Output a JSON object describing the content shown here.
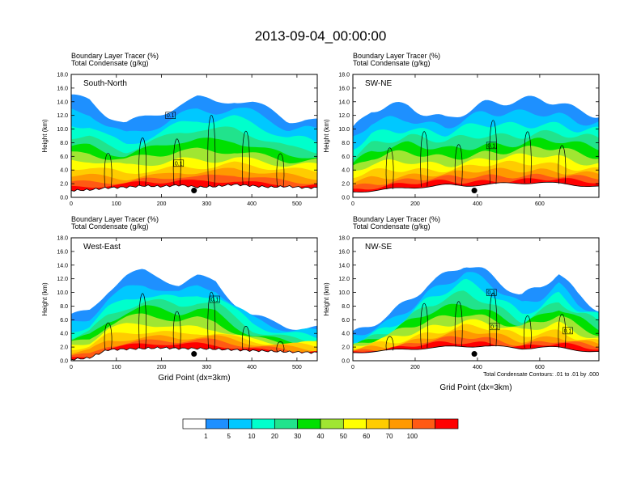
{
  "title": "2013-09-04_00:00:00",
  "subtitle_lines": [
    "Boundary Layer Tracer   (%)",
    "Total Condensate   (g/kg)"
  ],
  "ylabel": "Height (km)",
  "xlabel": "Grid Point (dx=3km)",
  "contour_note": "Total Condensate Contours: .01 to .01 by .000",
  "colors": {
    "fill_levels": [
      "#ffffff",
      "#1e90ff",
      "#00c8ff",
      "#00ffcc",
      "#21e38c",
      "#00e000",
      "#a0e632",
      "#ffff00",
      "#ffcc00",
      "#ff9900",
      "#ff5a14",
      "#ff0000"
    ],
    "contour": "#000000"
  },
  "chart_data": [
    {
      "type": "heatmap",
      "panel": "South-North",
      "xlim": [
        0,
        545
      ],
      "ylim": [
        0,
        18
      ],
      "x_ticks": [
        "0",
        "100",
        "200",
        "300",
        "400",
        "500"
      ],
      "y_ticks": [
        "0.0",
        "2.0",
        "4.0",
        "6.0",
        "8.0",
        "10.0",
        "12.0",
        "14.0",
        "16.0",
        "18.0"
      ],
      "marker_x": 272,
      "box_labels": [
        {
          "x": 220,
          "y": 12.0,
          "text": "0.1"
        },
        {
          "x": 238,
          "y": 5.0,
          "text": "0.1"
        }
      ],
      "profile": [
        {
          "x": 0,
          "terrain": 1.0,
          "top": 14.2
        },
        {
          "x": 40,
          "terrain": 1.1,
          "top": 14.0
        },
        {
          "x": 80,
          "terrain": 1.4,
          "top": 11.8
        },
        {
          "x": 120,
          "terrain": 1.5,
          "top": 10.5
        },
        {
          "x": 160,
          "terrain": 1.7,
          "top": 11.5
        },
        {
          "x": 200,
          "terrain": 1.6,
          "top": 12.6
        },
        {
          "x": 240,
          "terrain": 1.8,
          "top": 14.0
        },
        {
          "x": 280,
          "terrain": 1.5,
          "top": 14.8
        },
        {
          "x": 320,
          "terrain": 1.6,
          "top": 14.4
        },
        {
          "x": 360,
          "terrain": 1.9,
          "top": 14.6
        },
        {
          "x": 400,
          "terrain": 1.7,
          "top": 13.8
        },
        {
          "x": 440,
          "terrain": 1.5,
          "top": 12.5
        },
        {
          "x": 480,
          "terrain": 1.6,
          "top": 11.0
        },
        {
          "x": 520,
          "terrain": 1.4,
          "top": 11.2
        },
        {
          "x": 545,
          "terrain": 1.4,
          "top": 10.8
        }
      ]
    },
    {
      "type": "heatmap",
      "panel": "SW-NE",
      "xlim": [
        0,
        790
      ],
      "ylim": [
        0,
        18
      ],
      "x_ticks": [
        "0",
        "200",
        "400",
        "600"
      ],
      "y_ticks": [
        "0.0",
        "2.0",
        "4.0",
        "6.0",
        "8.0",
        "10.0",
        "12.0",
        "14.0",
        "16.0",
        "18.0"
      ],
      "marker_x": 390,
      "box_labels": [
        {
          "x": 445,
          "y": 7.6,
          "text": "0.1"
        }
      ],
      "profile": [
        {
          "x": 0,
          "terrain": 0.8,
          "top": 9.5
        },
        {
          "x": 60,
          "terrain": 1.0,
          "top": 12.5
        },
        {
          "x": 120,
          "terrain": 1.2,
          "top": 13.2
        },
        {
          "x": 180,
          "terrain": 1.4,
          "top": 13.5
        },
        {
          "x": 240,
          "terrain": 1.6,
          "top": 12.5
        },
        {
          "x": 300,
          "terrain": 1.8,
          "top": 11.8
        },
        {
          "x": 360,
          "terrain": 1.7,
          "top": 12.8
        },
        {
          "x": 420,
          "terrain": 1.9,
          "top": 13.6
        },
        {
          "x": 480,
          "terrain": 2.0,
          "top": 13.6
        },
        {
          "x": 540,
          "terrain": 2.1,
          "top": 13.8
        },
        {
          "x": 600,
          "terrain": 2.2,
          "top": 14.2
        },
        {
          "x": 660,
          "terrain": 2.0,
          "top": 14.0
        },
        {
          "x": 720,
          "terrain": 1.8,
          "top": 13.0
        },
        {
          "x": 790,
          "terrain": 1.6,
          "top": 12.5
        }
      ]
    },
    {
      "type": "heatmap",
      "panel": "West-East",
      "xlim": [
        0,
        545
      ],
      "ylim": [
        0,
        18
      ],
      "x_ticks": [
        "0",
        "100",
        "200",
        "300",
        "400",
        "500"
      ],
      "y_ticks": [
        "0.0",
        "2.0",
        "4.0",
        "6.0",
        "8.0",
        "10.0",
        "12.0",
        "14.0",
        "16.0",
        "18.0"
      ],
      "marker_x": 272,
      "box_labels": [
        {
          "x": 318,
          "y": 9.0,
          "text": "0.1"
        }
      ],
      "profile": [
        {
          "x": 0,
          "terrain": 0.2,
          "top": 6.0
        },
        {
          "x": 40,
          "terrain": 0.4,
          "top": 7.0
        },
        {
          "x": 80,
          "terrain": 1.6,
          "top": 10.0
        },
        {
          "x": 120,
          "terrain": 1.7,
          "top": 12.0
        },
        {
          "x": 160,
          "terrain": 1.8,
          "top": 13.0
        },
        {
          "x": 200,
          "terrain": 1.9,
          "top": 12.5
        },
        {
          "x": 240,
          "terrain": 1.8,
          "top": 11.5
        },
        {
          "x": 280,
          "terrain": 1.8,
          "top": 12.5
        },
        {
          "x": 320,
          "terrain": 1.7,
          "top": 12.0
        },
        {
          "x": 360,
          "terrain": 1.6,
          "top": 9.0
        },
        {
          "x": 400,
          "terrain": 1.5,
          "top": 6.5
        },
        {
          "x": 440,
          "terrain": 1.4,
          "top": 5.5
        },
        {
          "x": 480,
          "terrain": 1.3,
          "top": 4.8
        },
        {
          "x": 545,
          "terrain": 1.2,
          "top": 4.4
        }
      ]
    },
    {
      "type": "heatmap",
      "panel": "NW-SE",
      "xlim": [
        0,
        790
      ],
      "ylim": [
        0,
        18
      ],
      "x_ticks": [
        "0",
        "200",
        "400",
        "600"
      ],
      "y_ticks": [
        "0.0",
        "2.0",
        "4.0",
        "6.0",
        "8.0",
        "10.0",
        "12.0",
        "14.0",
        "16.0",
        "18.0"
      ],
      "marker_x": 390,
      "box_labels": [
        {
          "x": 445,
          "y": 10.0,
          "text": "0.1"
        },
        {
          "x": 455,
          "y": 5.0,
          "text": "0.1"
        },
        {
          "x": 690,
          "y": 4.4,
          "text": "0.1"
        }
      ],
      "profile": [
        {
          "x": 0,
          "terrain": 1.2,
          "top": 3.5
        },
        {
          "x": 60,
          "terrain": 1.4,
          "top": 5.0
        },
        {
          "x": 120,
          "terrain": 1.5,
          "top": 6.5
        },
        {
          "x": 180,
          "terrain": 1.7,
          "top": 9.0
        },
        {
          "x": 240,
          "terrain": 1.9,
          "top": 11.5
        },
        {
          "x": 300,
          "terrain": 2.0,
          "top": 13.0
        },
        {
          "x": 360,
          "terrain": 2.1,
          "top": 14.5
        },
        {
          "x": 420,
          "terrain": 2.2,
          "top": 13.0
        },
        {
          "x": 480,
          "terrain": 2.0,
          "top": 11.0
        },
        {
          "x": 540,
          "terrain": 1.8,
          "top": 9.0
        },
        {
          "x": 600,
          "terrain": 2.0,
          "top": 10.5
        },
        {
          "x": 660,
          "terrain": 1.9,
          "top": 13.0
        },
        {
          "x": 720,
          "terrain": 1.6,
          "top": 10.0
        },
        {
          "x": 790,
          "terrain": 1.3,
          "top": 8.0
        }
      ]
    }
  ],
  "colorbar": {
    "labels": [
      "1",
      "5",
      "10",
      "20",
      "30",
      "40",
      "50",
      "60",
      "70",
      "100"
    ]
  }
}
